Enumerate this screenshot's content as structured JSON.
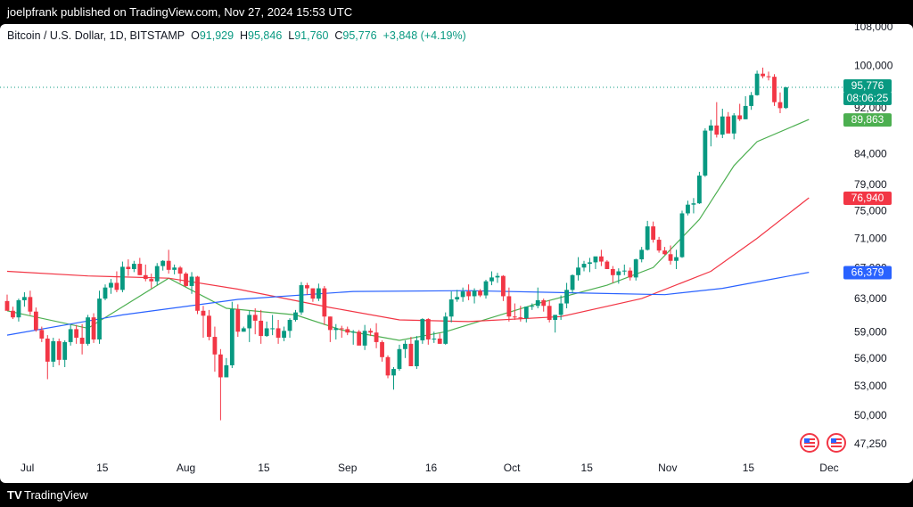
{
  "header": {
    "published": "joelpfrank published on TradingView.com, Nov 27, 2024 15:53 UTC"
  },
  "legend": {
    "symbol": "Bitcoin / U.S. Dollar, 1D, BITSTAMP",
    "o_label": "O",
    "o": "91,929",
    "h_label": "H",
    "h": "95,846",
    "l_label": "L",
    "l": "91,760",
    "c_label": "C",
    "c": "95,776",
    "change": "+3,848 (+4.19%)"
  },
  "footer": {
    "logo": "TV",
    "brand": "TradingView"
  },
  "colors": {
    "up": "#089981",
    "down": "#f23645",
    "ma_fast": "#4caf50",
    "ma_mid": "#f23645",
    "ma_slow": "#2962ff",
    "last": "#089981"
  },
  "chart_data": {
    "type": "candlestick",
    "y_scale": "log",
    "y_ticks": [
      "108,000",
      "100,000",
      "92,000",
      "84,000",
      "79,000",
      "75,000",
      "71,000",
      "67,000",
      "63,000",
      "59,000",
      "56,000",
      "53,000",
      "50,000",
      "47,250"
    ],
    "x_ticks": [
      "Jul",
      "15",
      "Aug",
      "15",
      "Sep",
      "16",
      "Oct",
      "15",
      "Nov",
      "15",
      "Dec"
    ],
    "price_tags": [
      {
        "label": "95,776",
        "value": 95776,
        "color": "#089981"
      },
      {
        "label": "08:06:25",
        "value": 93900,
        "color": "#089981"
      },
      {
        "label": "89,863",
        "value": 89863,
        "color": "#4caf50"
      },
      {
        "label": "76,940",
        "value": 76940,
        "color": "#f23645"
      },
      {
        "label": "66,379",
        "value": 66379,
        "color": "#2962ff"
      }
    ],
    "last_price": 95776,
    "candles": [
      [
        62700,
        63500,
        61800,
        61500
      ],
      [
        61500,
        62000,
        60500,
        60700
      ],
      [
        60700,
        63000,
        60200,
        62800
      ],
      [
        62800,
        63800,
        62000,
        63200
      ],
      [
        63200,
        64000,
        61000,
        61400
      ],
      [
        61400,
        61900,
        59000,
        59200
      ],
      [
        59200,
        59600,
        57800,
        58200
      ],
      [
        58200,
        58600,
        53700,
        55600
      ],
      [
        55600,
        58300,
        55000,
        57900
      ],
      [
        57900,
        58200,
        55200,
        55800
      ],
      [
        55800,
        58000,
        55000,
        57800
      ],
      [
        57800,
        59800,
        57400,
        59300
      ],
      [
        59300,
        59800,
        57600,
        58300
      ],
      [
        58300,
        59900,
        56400,
        57600
      ],
      [
        57600,
        61000,
        57400,
        60700
      ],
      [
        60700,
        61200,
        57700,
        58100
      ],
      [
        58100,
        64000,
        57600,
        63000
      ],
      [
        63000,
        64800,
        62800,
        64400
      ],
      [
        64400,
        65500,
        63600,
        65000
      ],
      [
        65000,
        66500,
        63800,
        64100
      ],
      [
        64100,
        67800,
        63800,
        67100
      ],
      [
        67100,
        68100,
        65900,
        66800
      ],
      [
        66800,
        67900,
        66400,
        67500
      ],
      [
        67500,
        68300,
        66000,
        66000
      ],
      [
        66000,
        67400,
        65200,
        65500
      ],
      [
        65500,
        66200,
        64300,
        65200
      ],
      [
        65200,
        67600,
        64700,
        67200
      ],
      [
        67200,
        68000,
        66600,
        67900
      ],
      [
        67900,
        69400,
        66200,
        66700
      ],
      [
        66700,
        67400,
        66100,
        67000
      ],
      [
        67000,
        67200,
        65000,
        66200
      ],
      [
        66200,
        66400,
        64500,
        64600
      ],
      [
        64600,
        66400,
        63600,
        65800
      ],
      [
        65800,
        65900,
        61100,
        61500
      ],
      [
        61500,
        62100,
        58300,
        60900
      ],
      [
        60900,
        61600,
        58000,
        58400
      ],
      [
        58400,
        59600,
        54500,
        56400
      ],
      [
        56400,
        57000,
        49500,
        53900
      ],
      [
        53900,
        56000,
        53900,
        55200
      ],
      [
        55200,
        62600,
        54900,
        61700
      ],
      [
        61700,
        62300,
        58400,
        59000
      ],
      [
        59000,
        59600,
        59000,
        59400
      ],
      [
        59400,
        61500,
        57800,
        61000
      ],
      [
        61000,
        61800,
        58700,
        60300
      ],
      [
        60300,
        61600,
        57600,
        58500
      ],
      [
        58500,
        60200,
        58400,
        59400
      ],
      [
        59400,
        61000,
        58600,
        59400
      ],
      [
        59400,
        60400,
        57600,
        58300
      ],
      [
        58300,
        59600,
        57900,
        59100
      ],
      [
        59100,
        60600,
        58300,
        60400
      ],
      [
        60400,
        61600,
        60200,
        61300
      ],
      [
        61300,
        65100,
        61000,
        64700
      ],
      [
        64700,
        65000,
        63500,
        64300
      ],
      [
        64300,
        64300,
        62600,
        63000
      ],
      [
        63000,
        64900,
        62700,
        64300
      ],
      [
        64300,
        64600,
        59800,
        60800
      ],
      [
        60800,
        60800,
        57800,
        59200
      ],
      [
        59200,
        59900,
        58100,
        59400
      ],
      [
        59400,
        59700,
        58300,
        59300
      ],
      [
        59300,
        59600,
        58600,
        58900
      ],
      [
        58900,
        59200,
        57500,
        59000
      ],
      [
        59000,
        59200,
        57700,
        57400
      ],
      [
        57400,
        59800,
        56900,
        59100
      ],
      [
        59100,
        59400,
        58500,
        58900
      ],
      [
        58900,
        60000,
        57100,
        57800
      ],
      [
        57800,
        58000,
        55600,
        56100
      ],
      [
        56100,
        56300,
        53800,
        54100
      ],
      [
        54100,
        55000,
        52600,
        54800
      ],
      [
        54800,
        57500,
        54600,
        57000
      ],
      [
        57000,
        58000,
        56000,
        57600
      ],
      [
        57600,
        58400,
        55500,
        55100
      ],
      [
        55100,
        58500,
        54800,
        58000
      ],
      [
        58000,
        60600,
        57600,
        60500
      ],
      [
        60500,
        60600,
        57500,
        58100
      ],
      [
        58100,
        59000,
        57700,
        58200
      ],
      [
        58200,
        58800,
        57600,
        57600
      ],
      [
        57600,
        61300,
        57500,
        60800
      ],
      [
        60800,
        63900,
        60100,
        62900
      ],
      [
        62900,
        64100,
        62600,
        63200
      ],
      [
        63200,
        64400,
        62600,
        63900
      ],
      [
        63900,
        64800,
        62800,
        63300
      ],
      [
        63300,
        64300,
        62400,
        64000
      ],
      [
        64000,
        64200,
        63200,
        63400
      ],
      [
        63400,
        65400,
        63000,
        65200
      ],
      [
        65200,
        66500,
        64700,
        65700
      ],
      [
        65700,
        66300,
        65000,
        65900
      ],
      [
        65900,
        66000,
        62700,
        63300
      ],
      [
        63300,
        64400,
        60200,
        60800
      ],
      [
        60800,
        62400,
        60400,
        60700
      ],
      [
        60700,
        62100,
        60200,
        60600
      ],
      [
        60600,
        62000,
        60100,
        62000
      ],
      [
        62000,
        62400,
        61600,
        62100
      ],
      [
        62100,
        64400,
        61800,
        62800
      ],
      [
        62800,
        63000,
        61400,
        62100
      ],
      [
        62100,
        62800,
        60100,
        60400
      ],
      [
        60400,
        61000,
        58900,
        61000
      ],
      [
        61000,
        63400,
        60400,
        62400
      ],
      [
        62400,
        65000,
        61800,
        64100
      ],
      [
        64100,
        66100,
        63700,
        66000
      ],
      [
        66000,
        68400,
        65300,
        67000
      ],
      [
        67000,
        67900,
        66500,
        67500
      ],
      [
        67500,
        68300,
        66400,
        67700
      ],
      [
        67700,
        68400,
        66800,
        68500
      ],
      [
        68500,
        69400,
        67200,
        67800
      ],
      [
        67800,
        68000,
        66800,
        66800
      ],
      [
        66800,
        67200,
        65000,
        66000
      ],
      [
        66000,
        66900,
        64900,
        66500
      ],
      [
        66500,
        67400,
        66000,
        66600
      ],
      [
        66600,
        67000,
        65300,
        65700
      ],
      [
        65700,
        68200,
        65300,
        68100
      ],
      [
        68100,
        69800,
        67700,
        69400
      ],
      [
        69400,
        73500,
        69300,
        72700
      ],
      [
        72700,
        73400,
        70400,
        70800
      ],
      [
        70800,
        71200,
        69000,
        69300
      ],
      [
        69300,
        69800,
        68700,
        68800
      ],
      [
        68800,
        70000,
        67400,
        67900
      ],
      [
        67900,
        69400,
        66800,
        68400
      ],
      [
        68400,
        75000,
        68300,
        74600
      ],
      [
        74600,
        76500,
        74300,
        75900
      ],
      [
        75900,
        76900,
        74600,
        76100
      ],
      [
        76100,
        81000,
        76000,
        80400
      ],
      [
        80400,
        88300,
        80200,
        87900
      ],
      [
        87900,
        89800,
        85200,
        88800
      ],
      [
        88800,
        93000,
        86700,
        87200
      ],
      [
        87200,
        91800,
        86600,
        90400
      ],
      [
        90400,
        91200,
        87600,
        87400
      ],
      [
        87400,
        91000,
        86400,
        90600
      ],
      [
        90600,
        92700,
        89600,
        89900
      ],
      [
        89900,
        94100,
        89900,
        92300
      ],
      [
        92300,
        94900,
        91600,
        94300
      ],
      [
        94300,
        99000,
        94200,
        98400
      ],
      [
        98400,
        99600,
        97500,
        97900
      ],
      [
        97900,
        98800,
        97100,
        97800
      ],
      [
        97800,
        98300,
        92300,
        93000
      ],
      [
        93000,
        94800,
        91000,
        91900
      ],
      [
        91929,
        95846,
        91760,
        95776
      ]
    ],
    "ma_fast": [
      [
        0,
        61500
      ],
      [
        14,
        59400
      ],
      [
        28,
        65600
      ],
      [
        38,
        61800
      ],
      [
        50,
        61000
      ],
      [
        58,
        59200
      ],
      [
        68,
        58000
      ],
      [
        76,
        59000
      ],
      [
        92,
        62400
      ],
      [
        104,
        64700
      ],
      [
        112,
        67000
      ],
      [
        120,
        73700
      ],
      [
        126,
        82000
      ],
      [
        130,
        86000
      ],
      [
        139,
        89863
      ]
    ],
    "ma_mid": [
      [
        0,
        66500
      ],
      [
        14,
        65900
      ],
      [
        28,
        65600
      ],
      [
        40,
        64200
      ],
      [
        56,
        61900
      ],
      [
        68,
        60400
      ],
      [
        80,
        60200
      ],
      [
        96,
        60800
      ],
      [
        110,
        63000
      ],
      [
        122,
        66500
      ],
      [
        130,
        71000
      ],
      [
        139,
        76940
      ]
    ],
    "ma_slow": [
      [
        0,
        58600
      ],
      [
        20,
        61000
      ],
      [
        40,
        62900
      ],
      [
        60,
        63900
      ],
      [
        80,
        64000
      ],
      [
        100,
        63700
      ],
      [
        114,
        63500
      ],
      [
        124,
        64300
      ],
      [
        132,
        65400
      ],
      [
        139,
        66379
      ]
    ]
  }
}
